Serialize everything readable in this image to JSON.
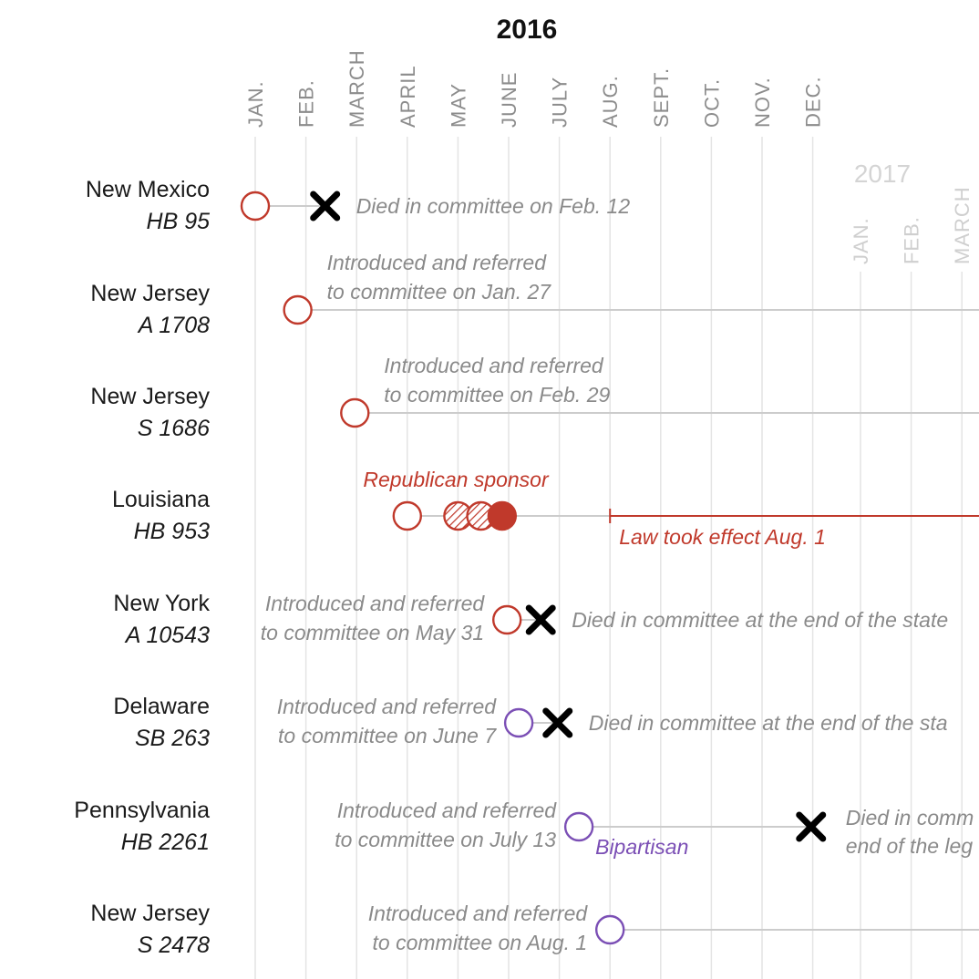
{
  "header": {
    "year": "2016",
    "year_next": "2017"
  },
  "months_2016": [
    "JAN.",
    "FEB.",
    "MARCH",
    "APRIL",
    "MAY",
    "JUNE",
    "JULY",
    "AUG.",
    "SEPT.",
    "OCT.",
    "NOV.",
    "DEC."
  ],
  "months_2017": [
    "JAN.",
    "FEB.",
    "MARCH"
  ],
  "colors": {
    "introduced_red": "#c0392b",
    "introduced_purple": "#7b4fb5",
    "died": "#000000",
    "line": "#cccccc",
    "gridline": "#e4e4e4"
  },
  "bills": [
    {
      "state": "New Mexico",
      "bill": "HB 95",
      "party": "red",
      "introduced": "2016-01-01",
      "events": [
        {
          "type": "died",
          "date": "2016-02-12"
        }
      ],
      "note_lines": [
        "Died in committee on Feb. 12"
      ]
    },
    {
      "state": "New Jersey",
      "bill": "A 1708",
      "party": "red",
      "introduced": "2016-01-27",
      "events": [],
      "note_lines": [
        "Introduced and referred",
        "to committee on Jan. 27"
      ]
    },
    {
      "state": "New Jersey",
      "bill": "S 1686",
      "party": "red",
      "introduced": "2016-02-29",
      "events": [],
      "note_lines": [
        "Introduced and referred",
        "to committee on Feb. 29"
      ]
    },
    {
      "state": "Louisiana",
      "bill": "HB 953",
      "party": "red",
      "introduced": "2016-04-01",
      "events": [
        {
          "type": "hatched",
          "date": "2016-05-01"
        },
        {
          "type": "hatched",
          "date": "2016-05-15"
        },
        {
          "type": "filled",
          "date": "2016-05-28"
        },
        {
          "type": "effect",
          "date": "2016-08-01"
        }
      ],
      "label_above": "Republican sponsor",
      "note_lines": [
        "Law took effect Aug. 1"
      ]
    },
    {
      "state": "New York",
      "bill": "A 10543",
      "party": "red",
      "introduced": "2016-05-31",
      "events": [
        {
          "type": "died",
          "date": "2016-06-20"
        }
      ],
      "left_lines": [
        "Introduced and referred",
        "to committee on May 31"
      ],
      "note_lines": [
        "Died in committee at the end of the state"
      ]
    },
    {
      "state": "Delaware",
      "bill": "SB 263",
      "party": "purple",
      "introduced": "2016-06-07",
      "events": [
        {
          "type": "died",
          "date": "2016-06-30"
        }
      ],
      "left_lines": [
        "Introduced and referred",
        "to committee on June 7"
      ],
      "note_lines": [
        "Died in committee at the end of the sta"
      ]
    },
    {
      "state": "Pennsylvania",
      "bill": "HB 2261",
      "party": "purple",
      "introduced": "2016-07-13",
      "events": [
        {
          "type": "died",
          "date": "2016-11-30"
        }
      ],
      "left_lines": [
        "Introduced and referred",
        "to committee on July 13"
      ],
      "label_below": "Bipartisan",
      "note_lines": [
        "Died in comm",
        "end of the leg"
      ]
    },
    {
      "state": "New Jersey",
      "bill": "S 2478",
      "party": "purple",
      "introduced": "2016-08-01",
      "events": [],
      "left_lines": [
        "Introduced and referred",
        "to committee on Aug. 1"
      ]
    }
  ]
}
